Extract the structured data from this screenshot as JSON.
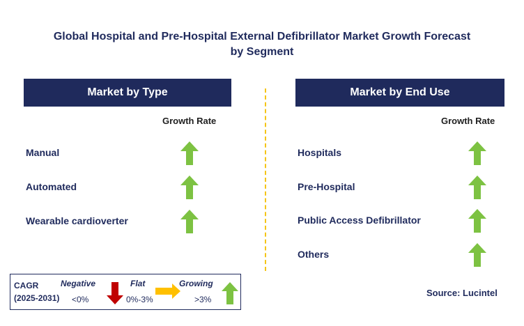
{
  "title_line1": "Global Hospital and Pre-Hospital External Defibrillator Market Growth Forecast",
  "title_line2": "by Segment",
  "left_panel": {
    "header": "Market by Type",
    "growth_label": "Growth Rate"
  },
  "right_panel": {
    "header": "Market by End Use",
    "growth_label": "Growth Rate"
  },
  "legend": {
    "cagr_label": "CAGR",
    "period": "(2025-2031)",
    "negative_label": "Negative",
    "negative_range": "<0%",
    "flat_label": "Flat",
    "flat_range": "0%-3%",
    "growing_label": "Growing",
    "growing_range": ">3%"
  },
  "source": "Source: Lucintel",
  "colors": {
    "navy": "#1f2a5c",
    "growing": "#7dc242",
    "negative": "#c00000",
    "flat": "#ffc000",
    "divider": "#f5c518"
  },
  "chart_data": [
    {
      "type": "table",
      "title": "Market by Type",
      "column": "Growth Rate",
      "rows": [
        {
          "segment": "Manual",
          "trend": "growing"
        },
        {
          "segment": "Automated",
          "trend": "growing"
        },
        {
          "segment": "Wearable cardioverter",
          "trend": "growing"
        }
      ]
    },
    {
      "type": "table",
      "title": "Market by End Use",
      "column": "Growth Rate",
      "rows": [
        {
          "segment": "Hospitals",
          "trend": "growing"
        },
        {
          "segment": "Pre-Hospital",
          "trend": "growing"
        },
        {
          "segment": "Public Access Defibrillator",
          "trend": "growing"
        },
        {
          "segment": "Others",
          "trend": "growing"
        }
      ]
    }
  ]
}
